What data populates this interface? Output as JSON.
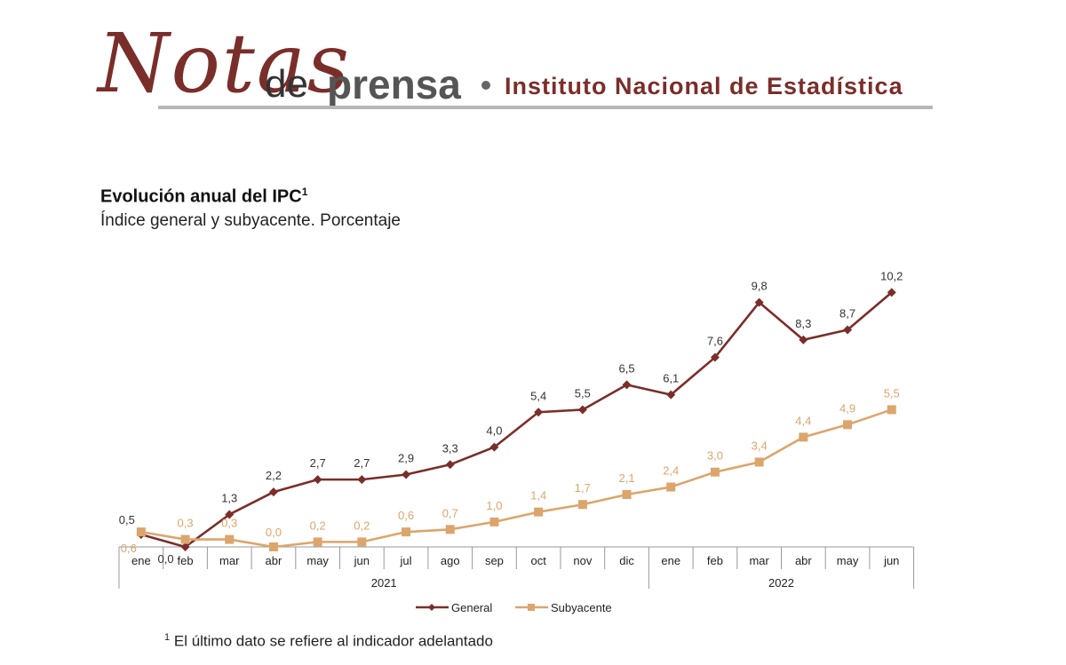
{
  "header": {
    "logo_notas": "Notas",
    "logo_de": "de",
    "logo_prensa": "prensa",
    "logo_institution": "Instituto Nacional de Estadística"
  },
  "colors": {
    "general": "#7a2e2a",
    "subyacente": "#dca56c",
    "axis": "#999999",
    "brand": "#7a2e2a"
  },
  "chart_data": {
    "type": "line",
    "title": "Evolución anual del IPC",
    "title_superscript": "1",
    "subtitle": "Índice general y subyacente. Porcentaje",
    "categories": [
      "ene",
      "feb",
      "mar",
      "abr",
      "may",
      "jun",
      "jul",
      "ago",
      "sep",
      "oct",
      "nov",
      "dic",
      "ene",
      "feb",
      "mar",
      "abr",
      "may",
      "jun"
    ],
    "year_groups": [
      {
        "label": "2021",
        "count": 12
      },
      {
        "label": "2022",
        "count": 6
      }
    ],
    "series": [
      {
        "name": "General",
        "values": [
          0.5,
          0.0,
          1.3,
          2.2,
          2.7,
          2.7,
          2.9,
          3.3,
          4.0,
          5.4,
          5.5,
          6.5,
          6.1,
          7.6,
          9.8,
          8.3,
          8.7,
          10.2
        ]
      },
      {
        "name": "Subyacente",
        "values": [
          0.6,
          0.3,
          0.3,
          0.0,
          0.2,
          0.2,
          0.6,
          0.7,
          1.0,
          1.4,
          1.7,
          2.1,
          2.4,
          3.0,
          3.4,
          4.4,
          4.9,
          5.5
        ]
      }
    ],
    "data_labels": true,
    "legend_position": "bottom-center",
    "grid": false
  },
  "footnote": {
    "marker": "1",
    "text": "El último dato se refiere al indicador adelantado"
  }
}
